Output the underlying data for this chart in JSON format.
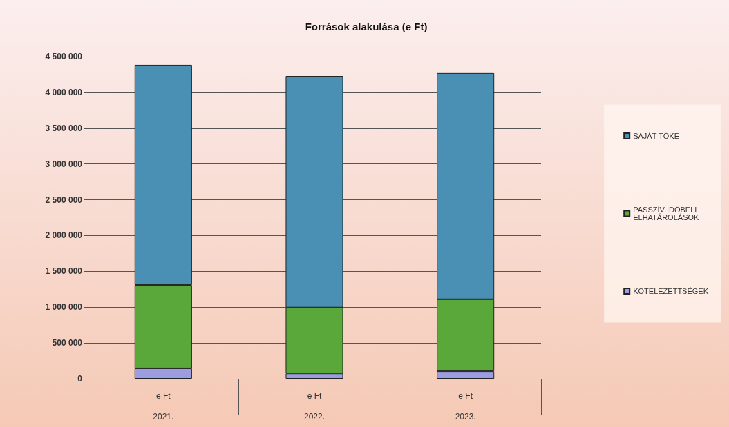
{
  "chart_data": {
    "type": "bar",
    "title": "Források alakulása (e Ft)",
    "categories": [
      "e Ft\n2021.",
      "e Ft\n2022.",
      "e Ft\n2023."
    ],
    "stacked": true,
    "series": [
      {
        "name": "KÖTELEZETTSÉGEK",
        "color": "#9c9ce0",
        "values": [
          145000,
          75000,
          105000
        ]
      },
      {
        "name": "PASSZÍV IDŐBELI ELHATÁROLÁSOK",
        "color": "#5aa83a",
        "values": [
          1165000,
          920000,
          1005000
        ]
      },
      {
        "name": "SAJÁT TŐKE",
        "color": "#4a90b4",
        "values": [
          3075000,
          3235000,
          3160000
        ]
      }
    ],
    "ylim": [
      0,
      4500000
    ],
    "yticks": [
      {
        "value": 0,
        "label": "0"
      },
      {
        "value": 500000,
        "label": "500 000"
      },
      {
        "value": 1000000,
        "label": "1 000 000"
      },
      {
        "value": 1500000,
        "label": "1 500 000"
      },
      {
        "value": 2000000,
        "label": "2 000 000"
      },
      {
        "value": 2500000,
        "label": "2 500 000"
      },
      {
        "value": 3000000,
        "label": "3 000 000"
      },
      {
        "value": 3500000,
        "label": "3 500 000"
      },
      {
        "value": 4000000,
        "label": "4 000 000"
      },
      {
        "value": 4500000,
        "label": "4 500 000"
      }
    ],
    "grid": "y",
    "legend": "right"
  }
}
